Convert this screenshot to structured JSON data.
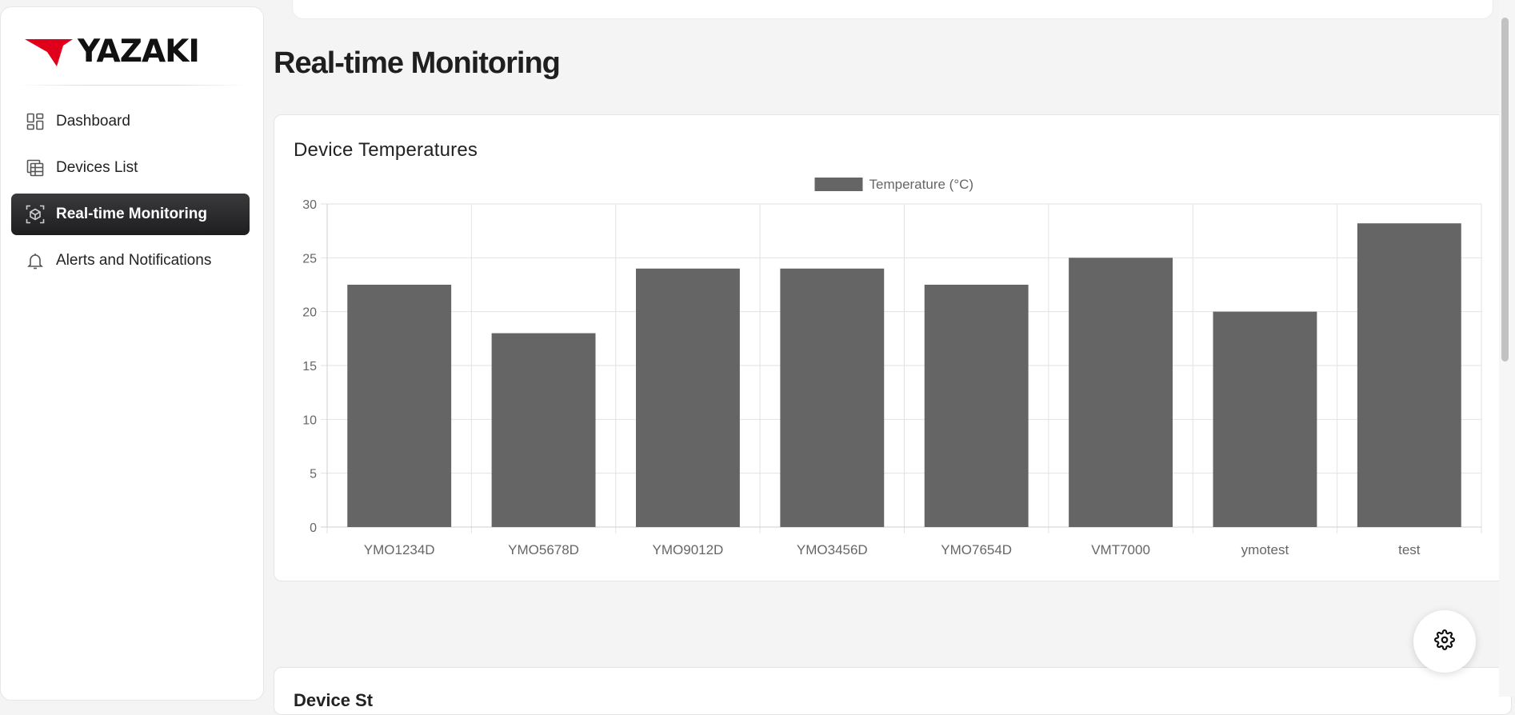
{
  "brand": {
    "name": "YAZAKI",
    "logo_color": "#e0001b"
  },
  "sidebar": {
    "items": [
      {
        "label": "Dashboard",
        "icon": "dashboard-icon",
        "active": false
      },
      {
        "label": "Devices List",
        "icon": "table-icon",
        "active": false
      },
      {
        "label": "Real-time Monitoring",
        "icon": "monitoring-cube-icon",
        "active": true
      },
      {
        "label": "Alerts and Notifications",
        "icon": "bell-icon",
        "active": false
      }
    ]
  },
  "page": {
    "title": "Real-time Monitoring"
  },
  "chart_card": {
    "title": "Device Temperatures"
  },
  "chart_data": {
    "type": "bar",
    "categories": [
      "YMO1234D",
      "YMO5678D",
      "YMO9012D",
      "YMO3456D",
      "YMO7654D",
      "VMT7000",
      "ymotest",
      "test"
    ],
    "series": [
      {
        "name": "Temperature (°C)",
        "values": [
          22.5,
          18,
          24,
          24,
          22.5,
          25,
          20,
          28.2
        ],
        "color": "#656565"
      }
    ],
    "ylim": [
      0,
      30
    ],
    "yticks": [
      0,
      5,
      10,
      15,
      20,
      25,
      30
    ],
    "grid": true,
    "legend": "top-center"
  },
  "bottom_card": {
    "title": "Device St"
  },
  "fab": {
    "icon": "gear-icon"
  }
}
